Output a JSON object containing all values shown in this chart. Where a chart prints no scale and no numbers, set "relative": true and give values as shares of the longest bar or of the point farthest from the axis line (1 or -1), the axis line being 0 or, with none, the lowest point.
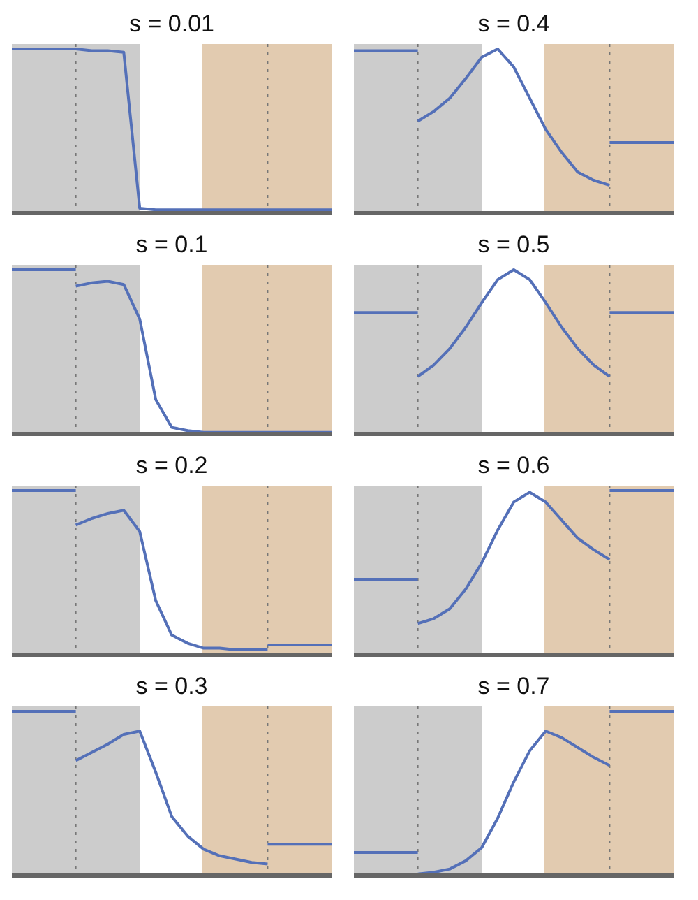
{
  "chart_data": [
    {
      "type": "line",
      "title": "s = 0.01",
      "relative": true,
      "grid": false,
      "categories": [
        null,
        null,
        null,
        null,
        null,
        null,
        null,
        null,
        null,
        null,
        null,
        null,
        null,
        null,
        null,
        null,
        null,
        null,
        null,
        null,
        null
      ],
      "series": [
        {
          "color": "#5470b8",
          "values": [
            1,
            1,
            1,
            1,
            1,
            0.99,
            0.99,
            0.98,
            0.03,
            0.02,
            0.02,
            0.02,
            0.02,
            0.02,
            0.02,
            0.02,
            0.02,
            0.02,
            0.02,
            0.02,
            0.02
          ]
        }
      ]
    },
    {
      "type": "line",
      "title": "s = 0.4",
      "relative": true,
      "grid": false,
      "categories": [
        null,
        null,
        null,
        null,
        null,
        null,
        null,
        null,
        null,
        null,
        null,
        null,
        null,
        null,
        null,
        null,
        null,
        null,
        null,
        null,
        null
      ],
      "series": [
        {
          "color": "#5470b8",
          "values": [
            0.99,
            0.99,
            0.99,
            0.99,
            0.99,
            null,
            null,
            null,
            null,
            null,
            null,
            null,
            null,
            null,
            null,
            null,
            null,
            null,
            null,
            null,
            null
          ]
        },
        {
          "color": "#5470b8",
          "values": [
            null,
            null,
            null,
            null,
            0.56,
            0.62,
            0.7,
            0.82,
            0.95,
            1,
            0.89,
            0.7,
            0.51,
            0.37,
            0.25,
            0.2,
            0.17,
            null,
            null,
            null,
            null
          ]
        },
        {
          "color": "#5470b8",
          "values": [
            null,
            null,
            null,
            null,
            null,
            null,
            null,
            null,
            null,
            null,
            null,
            null,
            null,
            null,
            null,
            null,
            0.43,
            0.43,
            0.43,
            0.43,
            0.43
          ]
        }
      ]
    },
    {
      "type": "line",
      "title": "s = 0.1",
      "relative": true,
      "grid": false,
      "categories": [
        null,
        null,
        null,
        null,
        null,
        null,
        null,
        null,
        null,
        null,
        null,
        null,
        null,
        null,
        null,
        null,
        null,
        null,
        null,
        null,
        null
      ],
      "series": [
        {
          "color": "#5470b8",
          "values": [
            1,
            1,
            1,
            1,
            1,
            null,
            null,
            null,
            null,
            null,
            null,
            null,
            null,
            null,
            null,
            null,
            null,
            null,
            null,
            null,
            null
          ]
        },
        {
          "color": "#5470b8",
          "values": [
            null,
            null,
            null,
            null,
            0.9,
            0.92,
            0.93,
            0.91,
            0.7,
            0.21,
            0.04,
            0.02,
            0.01,
            0.01,
            0.01,
            0.01,
            0.01,
            0.01,
            0.01,
            0.01,
            0.01
          ]
        }
      ]
    },
    {
      "type": "line",
      "title": "s = 0.5",
      "relative": true,
      "grid": false,
      "categories": [
        null,
        null,
        null,
        null,
        null,
        null,
        null,
        null,
        null,
        null,
        null,
        null,
        null,
        null,
        null,
        null,
        null,
        null,
        null,
        null,
        null
      ],
      "series": [
        {
          "color": "#5470b8",
          "values": [
            0.74,
            0.74,
            0.74,
            0.74,
            0.74,
            null,
            null,
            null,
            null,
            null,
            null,
            null,
            null,
            null,
            null,
            null,
            null,
            null,
            null,
            null,
            null
          ]
        },
        {
          "color": "#5470b8",
          "values": [
            null,
            null,
            null,
            null,
            0.35,
            0.42,
            0.52,
            0.65,
            0.8,
            0.94,
            1,
            0.94,
            0.8,
            0.65,
            0.52,
            0.42,
            0.35,
            null,
            null,
            null,
            null
          ]
        },
        {
          "color": "#5470b8",
          "values": [
            null,
            null,
            null,
            null,
            null,
            null,
            null,
            null,
            null,
            null,
            null,
            null,
            null,
            null,
            null,
            null,
            0.74,
            0.74,
            0.74,
            0.74,
            0.74
          ]
        }
      ]
    },
    {
      "type": "line",
      "title": "s = 0.2",
      "relative": true,
      "grid": false,
      "categories": [
        null,
        null,
        null,
        null,
        null,
        null,
        null,
        null,
        null,
        null,
        null,
        null,
        null,
        null,
        null,
        null,
        null,
        null,
        null,
        null,
        null
      ],
      "series": [
        {
          "color": "#5470b8",
          "values": [
            1,
            1,
            1,
            1,
            1,
            null,
            null,
            null,
            null,
            null,
            null,
            null,
            null,
            null,
            null,
            null,
            null,
            null,
            null,
            null,
            null
          ]
        },
        {
          "color": "#5470b8",
          "values": [
            null,
            null,
            null,
            null,
            0.79,
            0.83,
            0.86,
            0.88,
            0.75,
            0.33,
            0.12,
            0.07,
            0.04,
            0.04,
            0.03,
            0.03,
            0.03,
            null,
            null,
            null,
            null
          ]
        },
        {
          "color": "#5470b8",
          "values": [
            null,
            null,
            null,
            null,
            null,
            null,
            null,
            null,
            null,
            null,
            null,
            null,
            null,
            null,
            null,
            null,
            0.06,
            0.06,
            0.06,
            0.06,
            0.06
          ]
        }
      ]
    },
    {
      "type": "line",
      "title": "s = 0.6",
      "relative": true,
      "grid": false,
      "categories": [
        null,
        null,
        null,
        null,
        null,
        null,
        null,
        null,
        null,
        null,
        null,
        null,
        null,
        null,
        null,
        null,
        null,
        null,
        null,
        null,
        null
      ],
      "series": [
        {
          "color": "#5470b8",
          "values": [
            0.46,
            0.46,
            0.46,
            0.46,
            0.46,
            null,
            null,
            null,
            null,
            null,
            null,
            null,
            null,
            null,
            null,
            null,
            null,
            null,
            null,
            null,
            null
          ]
        },
        {
          "color": "#5470b8",
          "values": [
            null,
            null,
            null,
            null,
            0.19,
            0.22,
            0.28,
            0.4,
            0.56,
            0.76,
            0.93,
            0.99,
            0.93,
            0.82,
            0.71,
            0.64,
            0.58,
            null,
            null,
            null,
            null
          ]
        },
        {
          "color": "#5470b8",
          "values": [
            null,
            null,
            null,
            null,
            null,
            null,
            null,
            null,
            null,
            null,
            null,
            null,
            null,
            null,
            null,
            null,
            1,
            1,
            1,
            1,
            1
          ]
        }
      ]
    },
    {
      "type": "line",
      "title": "s = 0.3",
      "relative": true,
      "grid": false,
      "categories": [
        null,
        null,
        null,
        null,
        null,
        null,
        null,
        null,
        null,
        null,
        null,
        null,
        null,
        null,
        null,
        null,
        null,
        null,
        null,
        null,
        null
      ],
      "series": [
        {
          "color": "#5470b8",
          "values": [
            1,
            1,
            1,
            1,
            1,
            null,
            null,
            null,
            null,
            null,
            null,
            null,
            null,
            null,
            null,
            null,
            null,
            null,
            null,
            null,
            null
          ]
        },
        {
          "color": "#5470b8",
          "values": [
            null,
            null,
            null,
            null,
            0.7,
            0.75,
            0.8,
            0.86,
            0.88,
            0.63,
            0.36,
            0.24,
            0.16,
            0.12,
            0.1,
            0.08,
            0.07,
            null,
            null,
            null,
            null
          ]
        },
        {
          "color": "#5470b8",
          "values": [
            null,
            null,
            null,
            null,
            null,
            null,
            null,
            null,
            null,
            null,
            null,
            null,
            null,
            null,
            null,
            null,
            0.19,
            0.19,
            0.19,
            0.19,
            0.19
          ]
        }
      ]
    },
    {
      "type": "line",
      "title": "s = 0.7",
      "relative": true,
      "grid": false,
      "categories": [
        null,
        null,
        null,
        null,
        null,
        null,
        null,
        null,
        null,
        null,
        null,
        null,
        null,
        null,
        null,
        null,
        null,
        null,
        null,
        null,
        null
      ],
      "series": [
        {
          "color": "#5470b8",
          "values": [
            0.14,
            0.14,
            0.14,
            0.14,
            0.14,
            null,
            null,
            null,
            null,
            null,
            null,
            null,
            null,
            null,
            null,
            null,
            null,
            null,
            null,
            null,
            null
          ]
        },
        {
          "color": "#5470b8",
          "values": [
            null,
            null,
            null,
            null,
            0.01,
            0.02,
            0.04,
            0.09,
            0.17,
            0.35,
            0.57,
            0.76,
            0.88,
            0.84,
            0.78,
            0.72,
            0.67,
            null,
            null,
            null,
            null
          ]
        },
        {
          "color": "#5470b8",
          "values": [
            null,
            null,
            null,
            null,
            null,
            null,
            null,
            null,
            null,
            null,
            null,
            null,
            null,
            null,
            null,
            null,
            1,
            1,
            1,
            1,
            1
          ]
        }
      ]
    }
  ]
}
